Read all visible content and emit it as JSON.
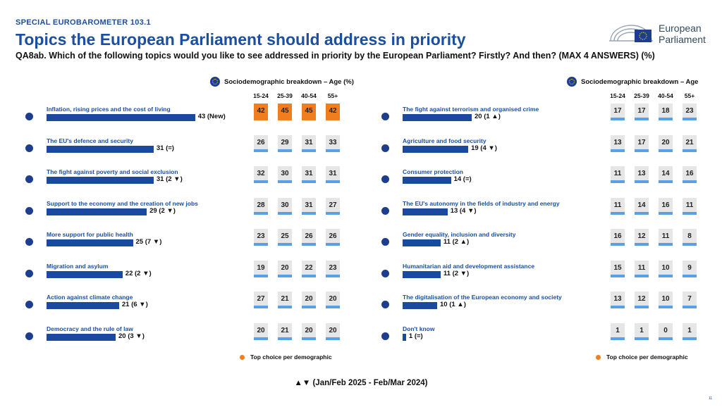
{
  "header": {
    "eyebrow": "SPECIAL EUROBAROMETER 103.1",
    "title": "Topics the European Parliament should address in priority",
    "question": "QA8ab. Which of the following topics would you like to see addressed in priority by the European Parliament? Firstly? And then? (MAX 4 ANSWERS) (%)"
  },
  "logo": {
    "line1": "European",
    "line2": "Parliament",
    "icon": "european-parliament-hemicycle-logo"
  },
  "breakdown": {
    "title_left": "Sociodemographic breakdown – Age (%)",
    "title_right": "Sociodemographic breakdown – Age",
    "age_groups": [
      "15-24",
      "25-39",
      "40-54",
      "55+"
    ],
    "legend_label": "Top choice per demographic"
  },
  "footer": {
    "note": "▲▼ (Jan/Feb 2025 - Feb/Mar 2024)",
    "page": "11"
  },
  "colors": {
    "accent": "#1c4fa0",
    "bar": "#1a4aa0",
    "highlight": "#f07e1e",
    "strip": "#5aa0e6",
    "cell": "#e6e6e6"
  },
  "chart_data": [
    {
      "type": "bar",
      "orientation": "horizontal",
      "categories": [
        "Inflation, rising prices and the cost of living",
        "The EU's defence and security",
        "The fight against poverty and social exclusion",
        "Support to the economy and the creation of new jobs",
        "More support for public health",
        "Migration and asylum",
        "Action against climate change",
        "Democracy and the rule of law"
      ],
      "values": [
        43,
        31,
        31,
        29,
        25,
        22,
        21,
        20
      ],
      "value_labels": [
        "43 (New)",
        "31 (=)",
        "31 (2 ▼)",
        "29 (2 ▼)",
        "25 (7 ▼)",
        "22 (2 ▼)",
        "21 (6 ▼)",
        "20 (3 ▼)"
      ],
      "age_breakdown": [
        [
          42,
          45,
          45,
          42
        ],
        [
          26,
          29,
          31,
          33
        ],
        [
          32,
          30,
          31,
          31
        ],
        [
          28,
          30,
          31,
          27
        ],
        [
          23,
          25,
          26,
          26
        ],
        [
          19,
          20,
          22,
          23
        ],
        [
          27,
          21,
          20,
          20
        ],
        [
          20,
          21,
          20,
          20
        ]
      ],
      "top_choice": [
        [
          true,
          true,
          true,
          true
        ],
        [
          false,
          false,
          false,
          false
        ],
        [
          false,
          false,
          false,
          false
        ],
        [
          false,
          false,
          false,
          false
        ],
        [
          false,
          false,
          false,
          false
        ],
        [
          false,
          false,
          false,
          false
        ],
        [
          false,
          false,
          false,
          false
        ],
        [
          false,
          false,
          false,
          false
        ]
      ]
    },
    {
      "type": "bar",
      "orientation": "horizontal",
      "categories": [
        "The fight against terrorism and organised crime",
        "Agriculture and food security",
        "Consumer protection",
        "The EU's autonomy in the fields of industry and energy",
        "Gender equality, inclusion and diversity",
        "Humanitarian aid and development assistance",
        "The digitalisation of the European economy and society",
        "Don't know"
      ],
      "values": [
        20,
        19,
        14,
        13,
        11,
        11,
        10,
        1
      ],
      "value_labels": [
        "20 (1 ▲)",
        "19 (4 ▼)",
        "14 (=)",
        "13 (4 ▼)",
        "11 (2 ▲)",
        "11 (2 ▼)",
        "10 (1 ▲)",
        "1 (=)"
      ],
      "age_breakdown": [
        [
          17,
          17,
          18,
          23
        ],
        [
          13,
          17,
          20,
          21
        ],
        [
          11,
          13,
          14,
          16
        ],
        [
          11,
          14,
          16,
          11
        ],
        [
          16,
          12,
          11,
          8
        ],
        [
          15,
          11,
          10,
          9
        ],
        [
          13,
          12,
          10,
          7
        ],
        [
          1,
          1,
          0,
          1
        ]
      ],
      "top_choice": [
        [
          false,
          false,
          false,
          false
        ],
        [
          false,
          false,
          false,
          false
        ],
        [
          false,
          false,
          false,
          false
        ],
        [
          false,
          false,
          false,
          false
        ],
        [
          false,
          false,
          false,
          false
        ],
        [
          false,
          false,
          false,
          false
        ],
        [
          false,
          false,
          false,
          false
        ],
        [
          false,
          false,
          false,
          false
        ]
      ]
    }
  ]
}
